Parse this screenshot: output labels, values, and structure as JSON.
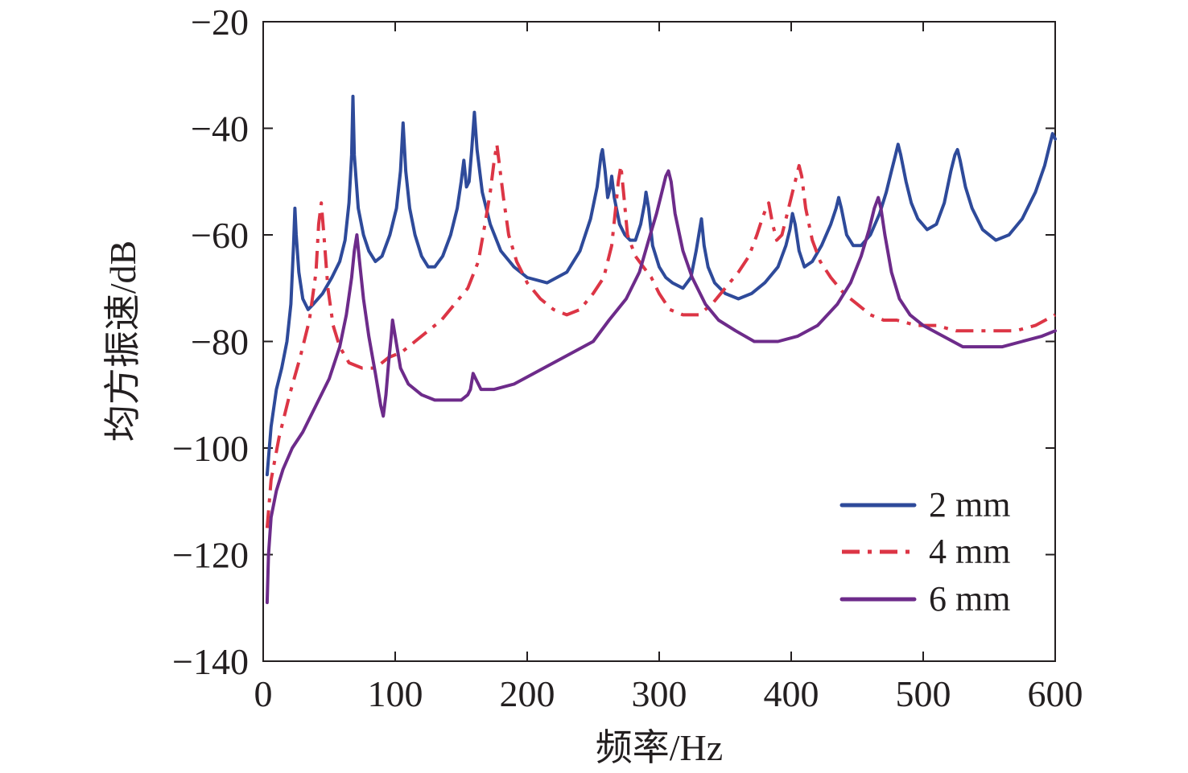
{
  "chart_data": {
    "type": "line",
    "xlabel": "频率/Hz",
    "ylabel": "均方振速/dB",
    "xlim": [
      0,
      600
    ],
    "ylim": [
      -140,
      -20
    ],
    "xticks": [
      "0",
      "100",
      "200",
      "300",
      "400",
      "500",
      "600"
    ],
    "xtick_values": [
      0,
      100,
      200,
      300,
      400,
      500,
      600
    ],
    "yticks": [
      "−20",
      "−40",
      "−60",
      "−80",
      "−100",
      "−120",
      "−140"
    ],
    "ytick_values": [
      -20,
      -40,
      -60,
      -80,
      -100,
      -120,
      -140
    ],
    "grid": false,
    "legend": "bottom-right",
    "series": [
      {
        "name": "2 mm",
        "color": "#2e4a9a",
        "dash": "solid",
        "points": [
          [
            3,
            -105
          ],
          [
            6,
            -96
          ],
          [
            10,
            -89
          ],
          [
            14,
            -85
          ],
          [
            18,
            -80
          ],
          [
            21,
            -73
          ],
          [
            23,
            -62
          ],
          [
            24,
            -55
          ],
          [
            25,
            -60
          ],
          [
            27,
            -67
          ],
          [
            30,
            -72
          ],
          [
            34,
            -74
          ],
          [
            38,
            -73
          ],
          [
            45,
            -71
          ],
          [
            52,
            -68
          ],
          [
            58,
            -65
          ],
          [
            62,
            -61
          ],
          [
            65,
            -54
          ],
          [
            67,
            -45
          ],
          [
            68,
            -34
          ],
          [
            69,
            -45
          ],
          [
            72,
            -55
          ],
          [
            76,
            -60
          ],
          [
            80,
            -63
          ],
          [
            85,
            -65
          ],
          [
            90,
            -64
          ],
          [
            96,
            -60
          ],
          [
            101,
            -55
          ],
          [
            104,
            -48
          ],
          [
            106,
            -39
          ],
          [
            108,
            -48
          ],
          [
            111,
            -55
          ],
          [
            115,
            -60
          ],
          [
            120,
            -64
          ],
          [
            125,
            -66
          ],
          [
            130,
            -66
          ],
          [
            136,
            -64
          ],
          [
            142,
            -60
          ],
          [
            147,
            -55
          ],
          [
            150,
            -50
          ],
          [
            152,
            -46
          ],
          [
            154,
            -51
          ],
          [
            156,
            -50
          ],
          [
            158,
            -44
          ],
          [
            160,
            -37
          ],
          [
            162,
            -44
          ],
          [
            166,
            -52
          ],
          [
            172,
            -58
          ],
          [
            180,
            -63
          ],
          [
            190,
            -66
          ],
          [
            200,
            -68
          ],
          [
            215,
            -69
          ],
          [
            230,
            -67
          ],
          [
            240,
            -63
          ],
          [
            248,
            -57
          ],
          [
            253,
            -51
          ],
          [
            256,
            -45
          ],
          [
            257,
            -44
          ],
          [
            259,
            -48
          ],
          [
            261,
            -53
          ],
          [
            263,
            -51
          ],
          [
            264,
            -49
          ],
          [
            266,
            -53
          ],
          [
            270,
            -58
          ],
          [
            274,
            -60
          ],
          [
            278,
            -61
          ],
          [
            282,
            -61
          ],
          [
            286,
            -58
          ],
          [
            289,
            -54
          ],
          [
            290,
            -52
          ],
          [
            292,
            -55
          ],
          [
            295,
            -62
          ],
          [
            300,
            -66
          ],
          [
            305,
            -68
          ],
          [
            310,
            -69
          ],
          [
            318,
            -70
          ],
          [
            324,
            -68
          ],
          [
            328,
            -63
          ],
          [
            330,
            -60
          ],
          [
            332,
            -57
          ],
          [
            334,
            -62
          ],
          [
            337,
            -66
          ],
          [
            342,
            -69
          ],
          [
            350,
            -71
          ],
          [
            360,
            -72
          ],
          [
            370,
            -71
          ],
          [
            380,
            -69
          ],
          [
            390,
            -66
          ],
          [
            396,
            -62
          ],
          [
            399,
            -59
          ],
          [
            401,
            -56
          ],
          [
            403,
            -58
          ],
          [
            406,
            -63
          ],
          [
            410,
            -66
          ],
          [
            416,
            -65
          ],
          [
            423,
            -62
          ],
          [
            430,
            -58
          ],
          [
            434,
            -55
          ],
          [
            436,
            -53
          ],
          [
            438,
            -55
          ],
          [
            442,
            -60
          ],
          [
            447,
            -62
          ],
          [
            453,
            -62
          ],
          [
            460,
            -60
          ],
          [
            467,
            -56
          ],
          [
            472,
            -52
          ],
          [
            476,
            -48
          ],
          [
            479,
            -45
          ],
          [
            481,
            -43
          ],
          [
            483,
            -45
          ],
          [
            487,
            -50
          ],
          [
            491,
            -54
          ],
          [
            496,
            -57
          ],
          [
            503,
            -59
          ],
          [
            510,
            -58
          ],
          [
            516,
            -54
          ],
          [
            521,
            -48
          ],
          [
            524,
            -45
          ],
          [
            526,
            -44
          ],
          [
            528,
            -46
          ],
          [
            532,
            -51
          ],
          [
            537,
            -55
          ],
          [
            545,
            -59
          ],
          [
            555,
            -61
          ],
          [
            565,
            -60
          ],
          [
            575,
            -57
          ],
          [
            585,
            -52
          ],
          [
            592,
            -47
          ],
          [
            596,
            -43
          ],
          [
            598,
            -41
          ],
          [
            600,
            -42
          ]
        ]
      },
      {
        "name": "4 mm",
        "color": "#dc3545",
        "dash": "dashdot",
        "points": [
          [
            3,
            -115
          ],
          [
            6,
            -106
          ],
          [
            12,
            -98
          ],
          [
            20,
            -90
          ],
          [
            28,
            -83
          ],
          [
            35,
            -76
          ],
          [
            40,
            -67
          ],
          [
            42,
            -58
          ],
          [
            44,
            -54
          ],
          [
            46,
            -60
          ],
          [
            49,
            -70
          ],
          [
            53,
            -77
          ],
          [
            58,
            -81
          ],
          [
            65,
            -84
          ],
          [
            75,
            -85
          ],
          [
            85,
            -85
          ],
          [
            95,
            -83
          ],
          [
            105,
            -82
          ],
          [
            115,
            -80
          ],
          [
            125,
            -78
          ],
          [
            135,
            -76
          ],
          [
            145,
            -73
          ],
          [
            155,
            -70
          ],
          [
            163,
            -65
          ],
          [
            168,
            -58
          ],
          [
            172,
            -52
          ],
          [
            175,
            -46
          ],
          [
            177,
            -43
          ],
          [
            179,
            -47
          ],
          [
            182,
            -53
          ],
          [
            186,
            -60
          ],
          [
            192,
            -65
          ],
          [
            200,
            -69
          ],
          [
            210,
            -72
          ],
          [
            220,
            -74
          ],
          [
            230,
            -75
          ],
          [
            240,
            -74
          ],
          [
            250,
            -71
          ],
          [
            258,
            -68
          ],
          [
            264,
            -62
          ],
          [
            267,
            -55
          ],
          [
            269,
            -50
          ],
          [
            271,
            -47
          ],
          [
            273,
            -52
          ],
          [
            276,
            -60
          ],
          [
            282,
            -64
          ],
          [
            288,
            -66
          ],
          [
            294,
            -68
          ],
          [
            300,
            -71
          ],
          [
            308,
            -74
          ],
          [
            318,
            -75
          ],
          [
            330,
            -75
          ],
          [
            340,
            -73
          ],
          [
            350,
            -70
          ],
          [
            360,
            -67
          ],
          [
            368,
            -64
          ],
          [
            374,
            -60
          ],
          [
            378,
            -57
          ],
          [
            381,
            -55
          ],
          [
            383,
            -54
          ],
          [
            386,
            -58
          ],
          [
            389,
            -61
          ],
          [
            393,
            -60
          ],
          [
            397,
            -56
          ],
          [
            401,
            -52
          ],
          [
            404,
            -49
          ],
          [
            406,
            -47
          ],
          [
            408,
            -49
          ],
          [
            411,
            -55
          ],
          [
            416,
            -61
          ],
          [
            422,
            -65
          ],
          [
            430,
            -68
          ],
          [
            440,
            -71
          ],
          [
            450,
            -73
          ],
          [
            460,
            -75
          ],
          [
            470,
            -76
          ],
          [
            480,
            -76
          ],
          [
            495,
            -77
          ],
          [
            510,
            -77
          ],
          [
            525,
            -78
          ],
          [
            540,
            -78
          ],
          [
            555,
            -78
          ],
          [
            570,
            -78
          ],
          [
            585,
            -77
          ],
          [
            600,
            -75
          ]
        ]
      },
      {
        "name": "6 mm",
        "color": "#6d2b8a",
        "dash": "solid",
        "points": [
          [
            3,
            -129
          ],
          [
            4,
            -120
          ],
          [
            6,
            -113
          ],
          [
            10,
            -108
          ],
          [
            15,
            -104
          ],
          [
            22,
            -100
          ],
          [
            30,
            -97
          ],
          [
            40,
            -92
          ],
          [
            50,
            -87
          ],
          [
            58,
            -81
          ],
          [
            63,
            -75
          ],
          [
            67,
            -68
          ],
          [
            69,
            -63
          ],
          [
            71,
            -60
          ],
          [
            73,
            -65
          ],
          [
            76,
            -72
          ],
          [
            80,
            -79
          ],
          [
            85,
            -86
          ],
          [
            89,
            -92
          ],
          [
            91,
            -94
          ],
          [
            93,
            -90
          ],
          [
            95,
            -84
          ],
          [
            97,
            -79
          ],
          [
            98,
            -76
          ],
          [
            100,
            -79
          ],
          [
            104,
            -85
          ],
          [
            110,
            -88
          ],
          [
            120,
            -90
          ],
          [
            130,
            -91
          ],
          [
            140,
            -91
          ],
          [
            150,
            -91
          ],
          [
            155,
            -90
          ],
          [
            157,
            -89
          ],
          [
            159,
            -86
          ],
          [
            161,
            -87
          ],
          [
            165,
            -89
          ],
          [
            175,
            -89
          ],
          [
            190,
            -88
          ],
          [
            205,
            -86
          ],
          [
            220,
            -84
          ],
          [
            235,
            -82
          ],
          [
            250,
            -80
          ],
          [
            262,
            -76
          ],
          [
            275,
            -72
          ],
          [
            285,
            -67
          ],
          [
            292,
            -61
          ],
          [
            298,
            -56
          ],
          [
            302,
            -52
          ],
          [
            305,
            -49
          ],
          [
            307,
            -48
          ],
          [
            309,
            -50
          ],
          [
            312,
            -56
          ],
          [
            318,
            -63
          ],
          [
            325,
            -68
          ],
          [
            335,
            -73
          ],
          [
            345,
            -76
          ],
          [
            358,
            -78
          ],
          [
            372,
            -80
          ],
          [
            390,
            -80
          ],
          [
            405,
            -79
          ],
          [
            420,
            -77
          ],
          [
            435,
            -73
          ],
          [
            445,
            -69
          ],
          [
            453,
            -64
          ],
          [
            459,
            -59
          ],
          [
            463,
            -55
          ],
          [
            466,
            -53
          ],
          [
            468,
            -55
          ],
          [
            471,
            -60
          ],
          [
            476,
            -67
          ],
          [
            482,
            -72
          ],
          [
            490,
            -75
          ],
          [
            500,
            -77
          ],
          [
            515,
            -79
          ],
          [
            530,
            -81
          ],
          [
            545,
            -81
          ],
          [
            560,
            -81
          ],
          [
            575,
            -80
          ],
          [
            590,
            -79
          ],
          [
            600,
            -78
          ]
        ]
      }
    ]
  }
}
